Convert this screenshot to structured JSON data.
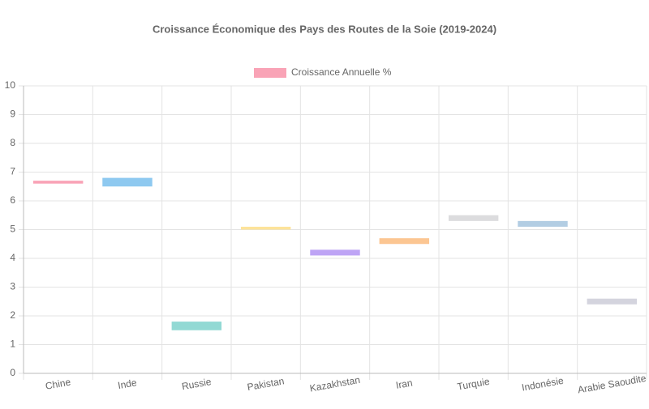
{
  "chart_data": {
    "type": "floating-bar",
    "title": "Croissance Économique des Pays des Routes de la Soie (2019-2024)",
    "categories": [
      "Chine",
      "Inde",
      "Russie",
      "Pakistan",
      "Kazakhstan",
      "Iran",
      "Turquie",
      "Indonésie",
      "Arabie Saoudite"
    ],
    "series": [
      {
        "name": "Croissance Annuelle %",
        "color": "#f9a3b6",
        "colors": [
          "#f9a3b6",
          "#8ec9f0",
          "#92d9d4",
          "#fde39a",
          "#bea4f5",
          "#fcc692",
          "#dcdcde",
          "#b2cde3",
          "#d4d4de"
        ],
        "values": [
          [
            6.6,
            6.7
          ],
          [
            6.5,
            6.8
          ],
          [
            1.5,
            1.8
          ],
          [
            5.0,
            5.1
          ],
          [
            4.1,
            4.3
          ],
          [
            4.5,
            4.7
          ],
          [
            5.3,
            5.5
          ],
          [
            5.1,
            5.3
          ],
          [
            2.4,
            2.6
          ]
        ]
      }
    ],
    "ylim": [
      0,
      10
    ],
    "yticks": [
      0,
      1,
      2,
      3,
      4,
      5,
      6,
      7,
      8,
      9,
      10
    ],
    "grid": true,
    "legend": "top"
  }
}
